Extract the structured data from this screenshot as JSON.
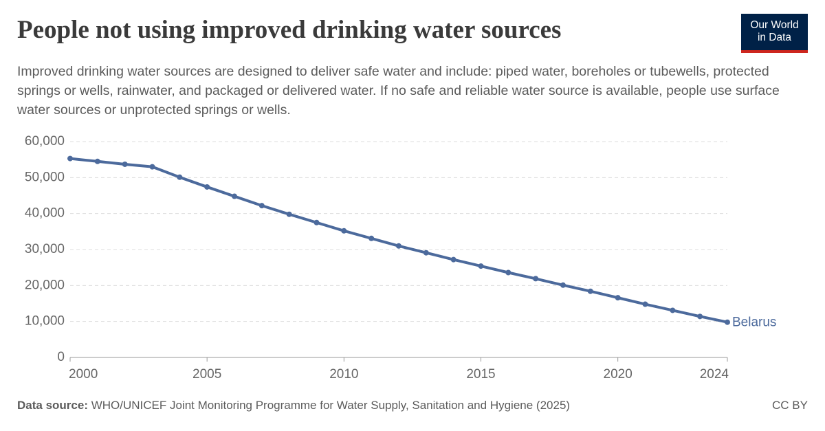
{
  "chart_data": {
    "type": "line",
    "title": "People not using improved drinking water sources",
    "subtitle": "Improved drinking water sources are designed to deliver safe water and include: piped water, boreholes or tubewells, protected springs or wells, rainwater, and packaged or delivered water. If no safe and reliable water source is available, people use surface water sources or unprotected springs or wells.",
    "logo": [
      "Our World",
      "in Data"
    ],
    "source_label": "Data source:",
    "source": "WHO/UNICEF Joint Monitoring Programme for Water Supply, Sanitation and Hygiene (2025)",
    "license": "CC BY",
    "x": [
      2000,
      2001,
      2002,
      2003,
      2004,
      2005,
      2006,
      2007,
      2008,
      2009,
      2010,
      2011,
      2012,
      2013,
      2014,
      2015,
      2016,
      2017,
      2018,
      2019,
      2020,
      2021,
      2022,
      2023,
      2024
    ],
    "series": [
      {
        "name": "Belarus",
        "color": "#4c6a9c",
        "values": [
          55300,
          54500,
          53700,
          53000,
          50100,
          47400,
          44800,
          42200,
          39800,
          37500,
          35200,
          33100,
          31000,
          29100,
          27200,
          25400,
          23600,
          21900,
          20100,
          18400,
          16600,
          14800,
          13100,
          11400,
          9800
        ]
      }
    ],
    "xlim": [
      2000,
      2024
    ],
    "xticks": [
      2000,
      2005,
      2010,
      2015,
      2020,
      2024
    ],
    "ylim": [
      0,
      60000
    ],
    "yticks": [
      0,
      {
        "value": 10000,
        "label": "10,000"
      },
      {
        "value": 20000,
        "label": "20,000"
      },
      {
        "value": 30000,
        "label": "30,000"
      },
      {
        "value": 40000,
        "label": "40,000"
      },
      {
        "value": 50000,
        "label": "50,000"
      },
      {
        "value": 60000,
        "label": "60,000"
      }
    ],
    "grid": true
  }
}
